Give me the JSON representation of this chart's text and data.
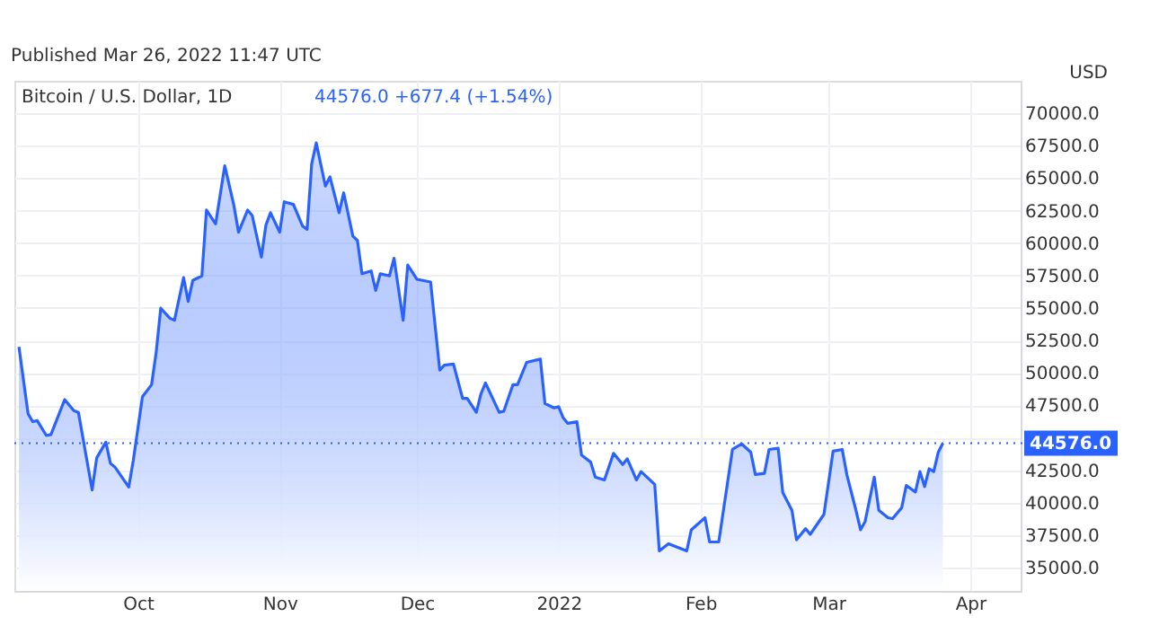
{
  "chart_data": {
    "type": "area",
    "title": "Bitcoin / U.S. Dollar, 1D",
    "ylabel": "USD",
    "annotations": [
      "Published Mar 26, 2022 11:47 UTC",
      "44576.0 +677.4 (+1.54%)"
    ],
    "x": [
      "2021-09-05",
      "2021-09-07",
      "2021-09-08",
      "2021-09-09",
      "2021-09-11",
      "2021-09-12",
      "2021-09-15",
      "2021-09-17",
      "2021-09-18",
      "2021-09-21",
      "2021-09-22",
      "2021-09-24",
      "2021-09-25",
      "2021-09-26",
      "2021-09-29",
      "2021-09-30",
      "2021-10-02",
      "2021-10-04",
      "2021-10-05",
      "2021-10-06",
      "2021-10-08",
      "2021-10-09",
      "2021-10-11",
      "2021-10-12",
      "2021-10-13",
      "2021-10-15",
      "2021-10-16",
      "2021-10-18",
      "2021-10-20",
      "2021-10-22",
      "2021-10-23",
      "2021-10-25",
      "2021-10-26",
      "2021-10-28",
      "2021-10-29",
      "2021-10-30",
      "2021-11-01",
      "2021-11-02",
      "2021-11-04",
      "2021-11-06",
      "2021-11-07",
      "2021-11-08",
      "2021-11-09",
      "2021-11-11",
      "2021-11-12",
      "2021-11-14",
      "2021-11-15",
      "2021-11-17",
      "2021-11-18",
      "2021-11-19",
      "2021-11-21",
      "2021-11-22",
      "2021-11-23",
      "2021-11-25",
      "2021-11-26",
      "2021-11-28",
      "2021-11-29",
      "2021-12-01",
      "2021-12-04",
      "2021-12-06",
      "2021-12-07",
      "2021-12-09",
      "2021-12-11",
      "2021-12-12",
      "2021-12-14",
      "2021-12-15",
      "2021-12-16",
      "2021-12-19",
      "2021-12-20",
      "2021-12-22",
      "2021-12-23",
      "2021-12-25",
      "2021-12-28",
      "2021-12-29",
      "2021-12-31",
      "2022-01-01",
      "2022-01-02",
      "2022-01-03",
      "2022-01-05",
      "2022-01-06",
      "2022-01-08",
      "2022-01-09",
      "2022-01-11",
      "2022-01-13",
      "2022-01-15",
      "2022-01-16",
      "2022-01-18",
      "2022-01-19",
      "2022-01-22",
      "2022-01-23",
      "2022-01-25",
      "2022-01-29",
      "2022-01-30",
      "2022-02-02",
      "2022-02-03",
      "2022-02-05",
      "2022-02-08",
      "2022-02-10",
      "2022-02-12",
      "2022-02-13",
      "2022-02-15",
      "2022-02-16",
      "2022-02-18",
      "2022-02-19",
      "2022-02-21",
      "2022-02-22",
      "2022-02-24",
      "2022-02-25",
      "2022-02-28",
      "2022-03-02",
      "2022-03-04",
      "2022-03-05",
      "2022-03-07",
      "2022-03-08",
      "2022-03-09",
      "2022-03-11",
      "2022-03-12",
      "2022-03-14",
      "2022-03-15",
      "2022-03-17",
      "2022-03-18",
      "2022-03-20",
      "2022-03-21",
      "2022-03-22",
      "2022-03-23",
      "2022-03-24",
      "2022-03-25",
      "2022-03-26"
    ],
    "series": [
      {
        "color": "#2962ff",
        "values": [
          52000,
          46850,
          46240,
          46320,
          45170,
          45250,
          47940,
          47090,
          46960,
          40980,
          43450,
          44660,
          43030,
          42740,
          41200,
          43250,
          48160,
          49090,
          51580,
          54980,
          54210,
          54050,
          57340,
          55500,
          57120,
          57470,
          62540,
          61480,
          65960,
          62890,
          60840,
          62540,
          62120,
          58920,
          61390,
          62340,
          60840,
          63180,
          62980,
          61310,
          61060,
          66090,
          67720,
          64390,
          65100,
          62340,
          63870,
          60540,
          60200,
          57640,
          57850,
          56350,
          57640,
          57470,
          58830,
          54050,
          58310,
          57210,
          57000,
          50210,
          50590,
          50680,
          48030,
          48030,
          46960,
          48370,
          49220,
          46960,
          47040,
          49090,
          49090,
          50810,
          51060,
          47640,
          47300,
          47390,
          46530,
          46110,
          46230,
          43670,
          43120,
          41970,
          41750,
          43800,
          42940,
          43380,
          41750,
          42390,
          41410,
          36280,
          36840,
          36280,
          37910,
          38840,
          36970,
          36970,
          44100,
          44530,
          43890,
          42170,
          42260,
          44100,
          44190,
          40770,
          39410,
          37140,
          38000,
          37560,
          39100,
          43970,
          44100,
          42170,
          39410,
          37910,
          38550,
          41970,
          39410,
          38840,
          38770,
          39610,
          41330,
          40820,
          42390,
          41240,
          42610,
          42390,
          43890,
          44576
        ]
      }
    ],
    "xlim": [
      "2021-09-04",
      "2022-04-12"
    ],
    "xticks": [
      {
        "value": "2021-10-01",
        "label": "Oct"
      },
      {
        "value": "2021-11-01",
        "label": "Nov"
      },
      {
        "value": "2021-12-01",
        "label": "Dec"
      },
      {
        "value": "2022-01-01",
        "label": "2022"
      },
      {
        "value": "2022-02-01",
        "label": "Feb"
      },
      {
        "value": "2022-03-01",
        "label": "Mar"
      },
      {
        "value": "2022-04-01",
        "label": "Apr"
      }
    ],
    "ylim": [
      33200,
      72500
    ],
    "yticks": [
      {
        "value": 35000,
        "label": "35000.0"
      },
      {
        "value": 37500,
        "label": "37500.0"
      },
      {
        "value": 40000,
        "label": "40000.0"
      },
      {
        "value": 42500,
        "label": "42500.0"
      },
      {
        "value": 45000,
        "label": null
      },
      {
        "value": 47500,
        "label": "47500.0"
      },
      {
        "value": 50000,
        "label": "50000.0"
      },
      {
        "value": 52500,
        "label": "52500.0"
      },
      {
        "value": 55000,
        "label": "55000.0"
      },
      {
        "value": 57500,
        "label": "57500.0"
      },
      {
        "value": 60000,
        "label": "60000.0"
      },
      {
        "value": 62500,
        "label": "62500.0"
      },
      {
        "value": 65000,
        "label": "65000.0"
      },
      {
        "value": 67500,
        "label": "67500.0"
      },
      {
        "value": 70000,
        "label": "70000.0"
      }
    ],
    "ref_lines": [
      {
        "axis": "y",
        "value": 44576,
        "label": "44576.0",
        "color": "#2962ff",
        "line_style": "dotted"
      }
    ],
    "grid": true,
    "line_style": "solid"
  }
}
